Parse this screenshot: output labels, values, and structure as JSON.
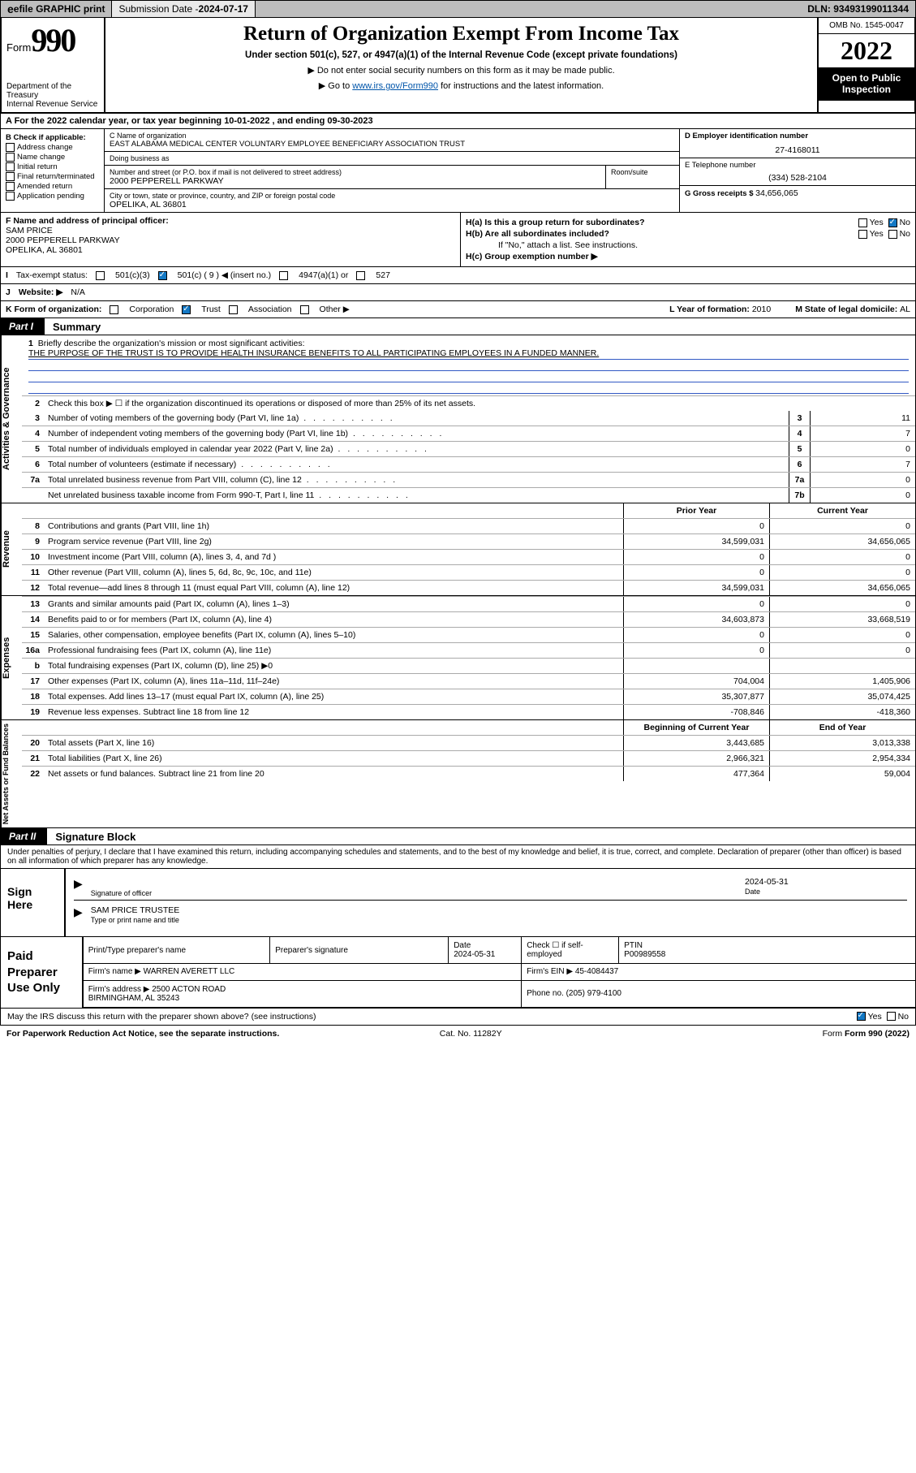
{
  "topbar": {
    "efile": "efile GRAPHIC print",
    "submission_label": "Submission Date - ",
    "submission_date": "2024-07-17",
    "dln_label": "DLN: ",
    "dln": "93493199011344"
  },
  "header": {
    "form_word": "Form",
    "form_no": "990",
    "dept": "Department of the Treasury\nInternal Revenue Service",
    "title": "Return of Organization Exempt From Income Tax",
    "sub": "Under section 501(c), 527, or 4947(a)(1) of the Internal Revenue Code (except private foundations)",
    "note1": "Do not enter social security numbers on this form as it may be made public.",
    "note2_pre": "Go to ",
    "note2_link": "www.irs.gov/Form990",
    "note2_post": " for instructions and the latest information.",
    "omb": "OMB No. 1545-0047",
    "year": "2022",
    "otp": "Open to Public Inspection"
  },
  "lineA": "A For the 2022 calendar year, or tax year beginning 10-01-2022    , and ending 09-30-2023",
  "B": {
    "hdr": "B Check if applicable:",
    "items": [
      "Address change",
      "Name change",
      "Initial return",
      "Final return/terminated",
      "Amended return",
      "Application pending"
    ]
  },
  "C": {
    "name_lbl": "C Name of organization",
    "name": "EAST ALABAMA MEDICAL CENTER VOLUNTARY EMPLOYEE BENEFICIARY ASSOCIATION TRUST",
    "dba_lbl": "Doing business as",
    "dba": "",
    "addr_lbl": "Number and street (or P.O. box if mail is not delivered to street address)",
    "suite_lbl": "Room/suite",
    "addr": "2000 PEPPERELL PARKWAY",
    "city_lbl": "City or town, state or province, country, and ZIP or foreign postal code",
    "city": "OPELIKA, AL  36801"
  },
  "D": {
    "lbl": "D Employer identification number",
    "val": "27-4168011"
  },
  "E": {
    "lbl": "E Telephone number",
    "val": "(334) 528-2104"
  },
  "G": {
    "lbl": "G Gross receipts $ ",
    "val": "34,656,065"
  },
  "F": {
    "lbl": "F  Name and address of principal officer:",
    "name": "SAM PRICE",
    "addr": "2000 PEPPERELL PARKWAY\nOPELIKA, AL  36801"
  },
  "H": {
    "a": "H(a)  Is this a group return for subordinates?",
    "b": "H(b)  Are all subordinates included?",
    "b_note": "If \"No,\" attach a list. See instructions.",
    "c": "H(c)  Group exemption number ▶",
    "yes": "Yes",
    "no": "No"
  },
  "I": {
    "lbl": "Tax-exempt status:",
    "opts": [
      "501(c)(3)",
      "501(c) ( 9 ) ◀ (insert no.)",
      "4947(a)(1) or",
      "527"
    ]
  },
  "J": {
    "lbl": "Website: ▶",
    "val": "N/A"
  },
  "K": {
    "lbl": "K Form of organization:",
    "opts": [
      "Corporation",
      "Trust",
      "Association",
      "Other ▶"
    ]
  },
  "L": {
    "lbl": "L Year of formation: ",
    "val": "2010"
  },
  "M": {
    "lbl": "M State of legal domicile: ",
    "val": "AL"
  },
  "part1": {
    "tag": "Part I",
    "title": "Summary"
  },
  "mission": {
    "q": "Briefly describe the organization's mission or most significant activities:",
    "a": "THE PURPOSE OF THE TRUST IS TO PROVIDE HEALTH INSURANCE BENEFITS TO ALL PARTICIPATING EMPLOYEES IN A FUNDED MANNER."
  },
  "gov": {
    "side": "Activities & Governance",
    "l2": "Check this box ▶ ☐  if the organization discontinued its operations or disposed of more than 25% of its net assets.",
    "rows": [
      {
        "n": "3",
        "t": "Number of voting members of the governing body (Part VI, line 1a)",
        "box": "3",
        "v": "11"
      },
      {
        "n": "4",
        "t": "Number of independent voting members of the governing body (Part VI, line 1b)",
        "box": "4",
        "v": "7"
      },
      {
        "n": "5",
        "t": "Total number of individuals employed in calendar year 2022 (Part V, line 2a)",
        "box": "5",
        "v": "0"
      },
      {
        "n": "6",
        "t": "Total number of volunteers (estimate if necessary)",
        "box": "6",
        "v": "7"
      },
      {
        "n": "7a",
        "t": "Total unrelated business revenue from Part VIII, column (C), line 12",
        "box": "7a",
        "v": "0"
      },
      {
        "n": "",
        "t": "Net unrelated business taxable income from Form 990-T, Part I, line 11",
        "box": "7b",
        "v": "0"
      }
    ]
  },
  "colhdr": {
    "c1": "Prior Year",
    "c2": "Current Year"
  },
  "rev": {
    "side": "Revenue",
    "rows": [
      {
        "n": "8",
        "t": "Contributions and grants (Part VIII, line 1h)",
        "c1": "0",
        "c2": "0"
      },
      {
        "n": "9",
        "t": "Program service revenue (Part VIII, line 2g)",
        "c1": "34,599,031",
        "c2": "34,656,065"
      },
      {
        "n": "10",
        "t": "Investment income (Part VIII, column (A), lines 3, 4, and 7d )",
        "c1": "0",
        "c2": "0"
      },
      {
        "n": "11",
        "t": "Other revenue (Part VIII, column (A), lines 5, 6d, 8c, 9c, 10c, and 11e)",
        "c1": "0",
        "c2": "0"
      },
      {
        "n": "12",
        "t": "Total revenue—add lines 8 through 11 (must equal Part VIII, column (A), line 12)",
        "c1": "34,599,031",
        "c2": "34,656,065"
      }
    ]
  },
  "exp": {
    "side": "Expenses",
    "rows": [
      {
        "n": "13",
        "t": "Grants and similar amounts paid (Part IX, column (A), lines 1–3)",
        "c1": "0",
        "c2": "0"
      },
      {
        "n": "14",
        "t": "Benefits paid to or for members (Part IX, column (A), line 4)",
        "c1": "34,603,873",
        "c2": "33,668,519"
      },
      {
        "n": "15",
        "t": "Salaries, other compensation, employee benefits (Part IX, column (A), lines 5–10)",
        "c1": "0",
        "c2": "0"
      },
      {
        "n": "16a",
        "t": "Professional fundraising fees (Part IX, column (A), line 11e)",
        "c1": "0",
        "c2": "0"
      },
      {
        "n": "b",
        "t": "Total fundraising expenses (Part IX, column (D), line 25) ▶0",
        "c1": "",
        "c2": "",
        "sh": true
      },
      {
        "n": "17",
        "t": "Other expenses (Part IX, column (A), lines 11a–11d, 11f–24e)",
        "c1": "704,004",
        "c2": "1,405,906"
      },
      {
        "n": "18",
        "t": "Total expenses. Add lines 13–17 (must equal Part IX, column (A), line 25)",
        "c1": "35,307,877",
        "c2": "35,074,425"
      },
      {
        "n": "19",
        "t": "Revenue less expenses. Subtract line 18 from line 12",
        "c1": "-708,846",
        "c2": "-418,360"
      }
    ]
  },
  "nethdr": {
    "c1": "Beginning of Current Year",
    "c2": "End of Year"
  },
  "net": {
    "side": "Net Assets or Fund Balances",
    "rows": [
      {
        "n": "20",
        "t": "Total assets (Part X, line 16)",
        "c1": "3,443,685",
        "c2": "3,013,338"
      },
      {
        "n": "21",
        "t": "Total liabilities (Part X, line 26)",
        "c1": "2,966,321",
        "c2": "2,954,334"
      },
      {
        "n": "22",
        "t": "Net assets or fund balances. Subtract line 21 from line 20",
        "c1": "477,364",
        "c2": "59,004"
      }
    ]
  },
  "part2": {
    "tag": "Part II",
    "title": "Signature Block"
  },
  "perjury": "Under penalties of perjury, I declare that I have examined this return, including accompanying schedules and statements, and to the best of my knowledge and belief, it is true, correct, and complete. Declaration of preparer (other than officer) is based on all information of which preparer has any knowledge.",
  "sign": {
    "lab": "Sign Here",
    "sig_lbl": "Signature of officer",
    "date_lbl": "Date",
    "date": "2024-05-31",
    "name": "SAM PRICE  TRUSTEE",
    "name_lbl": "Type or print name and title"
  },
  "prep": {
    "lab": "Paid Preparer Use Only",
    "h": [
      "Print/Type preparer's name",
      "Preparer's signature",
      "Date",
      "",
      "PTIN"
    ],
    "date": "2024-05-31",
    "check": "Check ☐ if self-employed",
    "ptin": "P00989558",
    "firm_lbl": "Firm's name   ▶ ",
    "firm": "WARREN AVERETT LLC",
    "ein_lbl": "Firm's EIN ▶ ",
    "ein": "45-4084437",
    "addr_lbl": "Firm's address ▶ ",
    "addr": "2500 ACTON ROAD\nBIRMINGHAM, AL  35243",
    "phone_lbl": "Phone no. ",
    "phone": "(205) 979-4100"
  },
  "discuss": "May the IRS discuss this return with the preparer shown above? (see instructions)",
  "footer": {
    "l": "For Paperwork Reduction Act Notice, see the separate instructions.",
    "c": "Cat. No. 11282Y",
    "r": "Form 990 (2022)"
  }
}
